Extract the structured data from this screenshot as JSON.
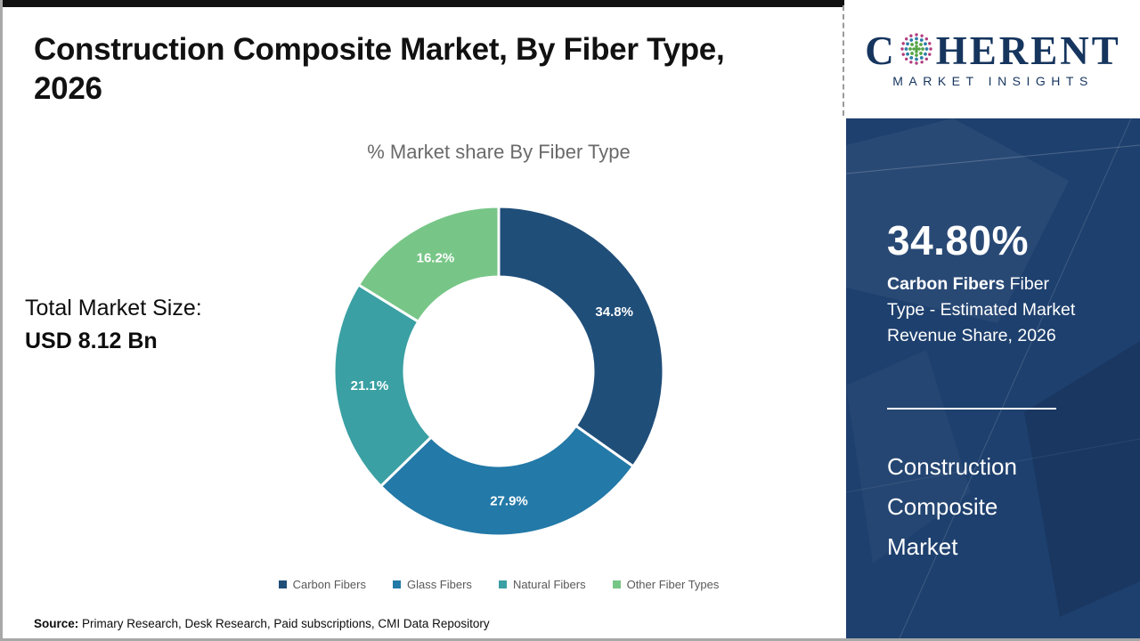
{
  "page": {
    "title_line1": "Construction Composite Market, By Fiber Type,",
    "title_line2": "2026",
    "total_market_label": "Total Market Size:",
    "total_market_value": "USD 8.12 Bn",
    "source_label": "Source:",
    "source_text": " Primary Research, Desk Research, Paid subscriptions, CMI Data Repository"
  },
  "logo": {
    "part1": "C",
    "part2": "HERENT",
    "subtitle": "MARKET INSIGHTS",
    "navy": "#16355e",
    "dot_outer_color": "#b13d7f",
    "dot_mid_color": "#2f7fa7",
    "dot_inner_color": "#56a546"
  },
  "sidebar": {
    "bg_color": "#1e406e",
    "stat_value": "34.80%",
    "stat_desc_bold": "Carbon Fibers",
    "stat_desc_rest": " Fiber Type - Estimated Market Revenue Share, 2026",
    "market_name_line1": "Construction",
    "market_name_line2": "Composite",
    "market_name_line3": "Market"
  },
  "chart_data": {
    "type": "pie",
    "donut": true,
    "title": "% Market share By Fiber Type",
    "categories": [
      "Carbon Fibers",
      "Glass Fibers",
      "Natural Fibers",
      "Other Fiber Types"
    ],
    "values": [
      34.8,
      27.9,
      21.1,
      16.2
    ],
    "labels": [
      "34.8%",
      "27.9%",
      "21.1%",
      "16.2%"
    ],
    "colors": [
      "#1f4e79",
      "#2379a7",
      "#3aa0a3",
      "#77c687"
    ],
    "start_angle_deg": -90,
    "direction": "clockwise",
    "legend_position": "bottom"
  }
}
